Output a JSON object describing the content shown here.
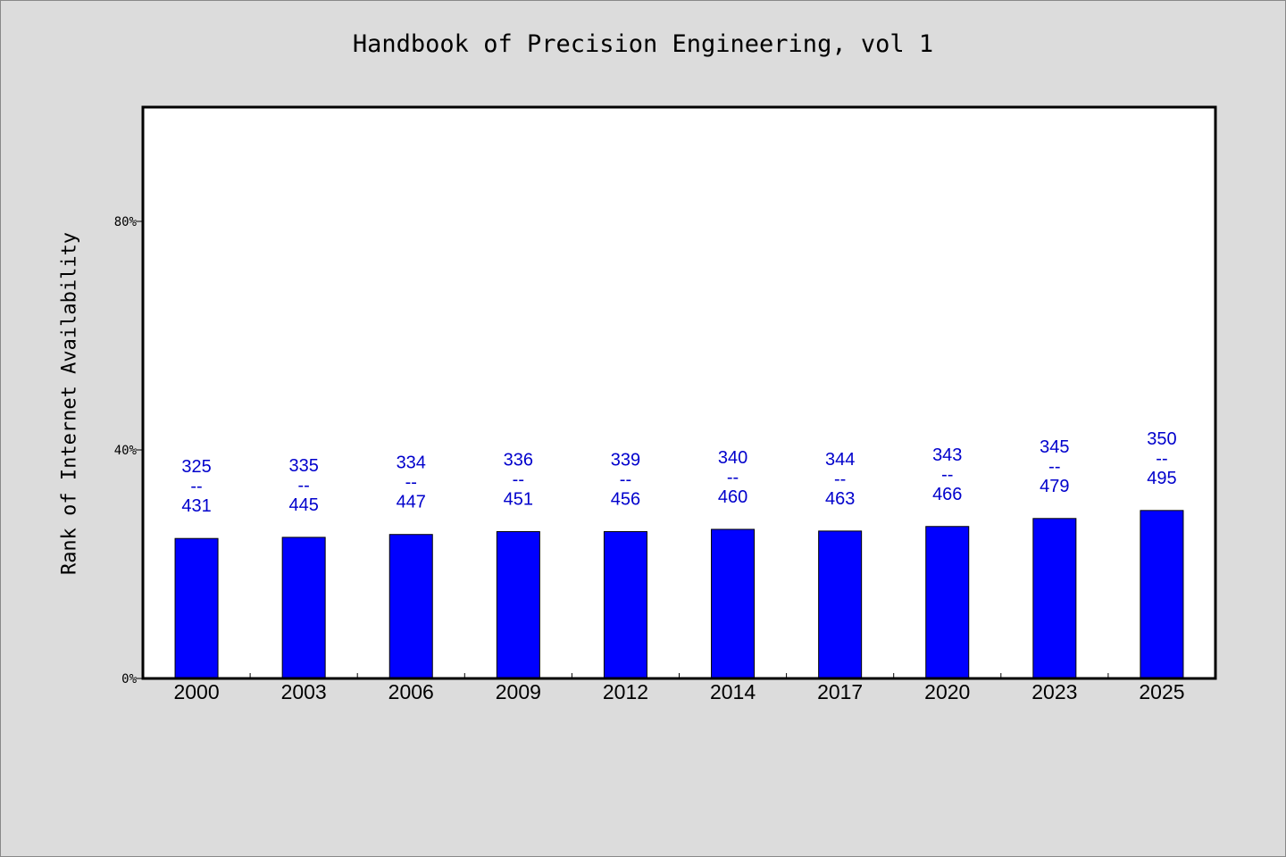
{
  "chart_data": {
    "type": "bar",
    "title": "Handbook of Precision Engineering, vol 1",
    "xlabel": "",
    "ylabel": "Rank of Internet Availability",
    "ylim": [
      0,
      100
    ],
    "yticks": [
      0,
      40,
      80
    ],
    "ytick_labels": [
      "0%",
      "40%",
      "80%"
    ],
    "categories": [
      "2000",
      "2003",
      "2006",
      "2009",
      "2012",
      "2014",
      "2017",
      "2020",
      "2023",
      "2025"
    ],
    "values": [
      24.5,
      24.7,
      25.2,
      25.7,
      25.7,
      26.1,
      25.8,
      26.6,
      28.0,
      29.4
    ],
    "data_labels": [
      {
        "top": "325",
        "mid": "--",
        "bottom": "431"
      },
      {
        "top": "335",
        "mid": "--",
        "bottom": "445"
      },
      {
        "top": "334",
        "mid": "--",
        "bottom": "447"
      },
      {
        "top": "336",
        "mid": "--",
        "bottom": "451"
      },
      {
        "top": "339",
        "mid": "--",
        "bottom": "456"
      },
      {
        "top": "340",
        "mid": "--",
        "bottom": "460"
      },
      {
        "top": "344",
        "mid": "--",
        "bottom": "463"
      },
      {
        "top": "343",
        "mid": "--",
        "bottom": "466"
      },
      {
        "top": "345",
        "mid": "--",
        "bottom": "479"
      },
      {
        "top": "350",
        "mid": "--",
        "bottom": "495"
      }
    ],
    "grid": false,
    "legend": "none",
    "colors": {
      "bar": "#0000ff",
      "label": "#0000cc",
      "background": "#dcdcdc",
      "plot_bg": "#ffffff"
    }
  }
}
